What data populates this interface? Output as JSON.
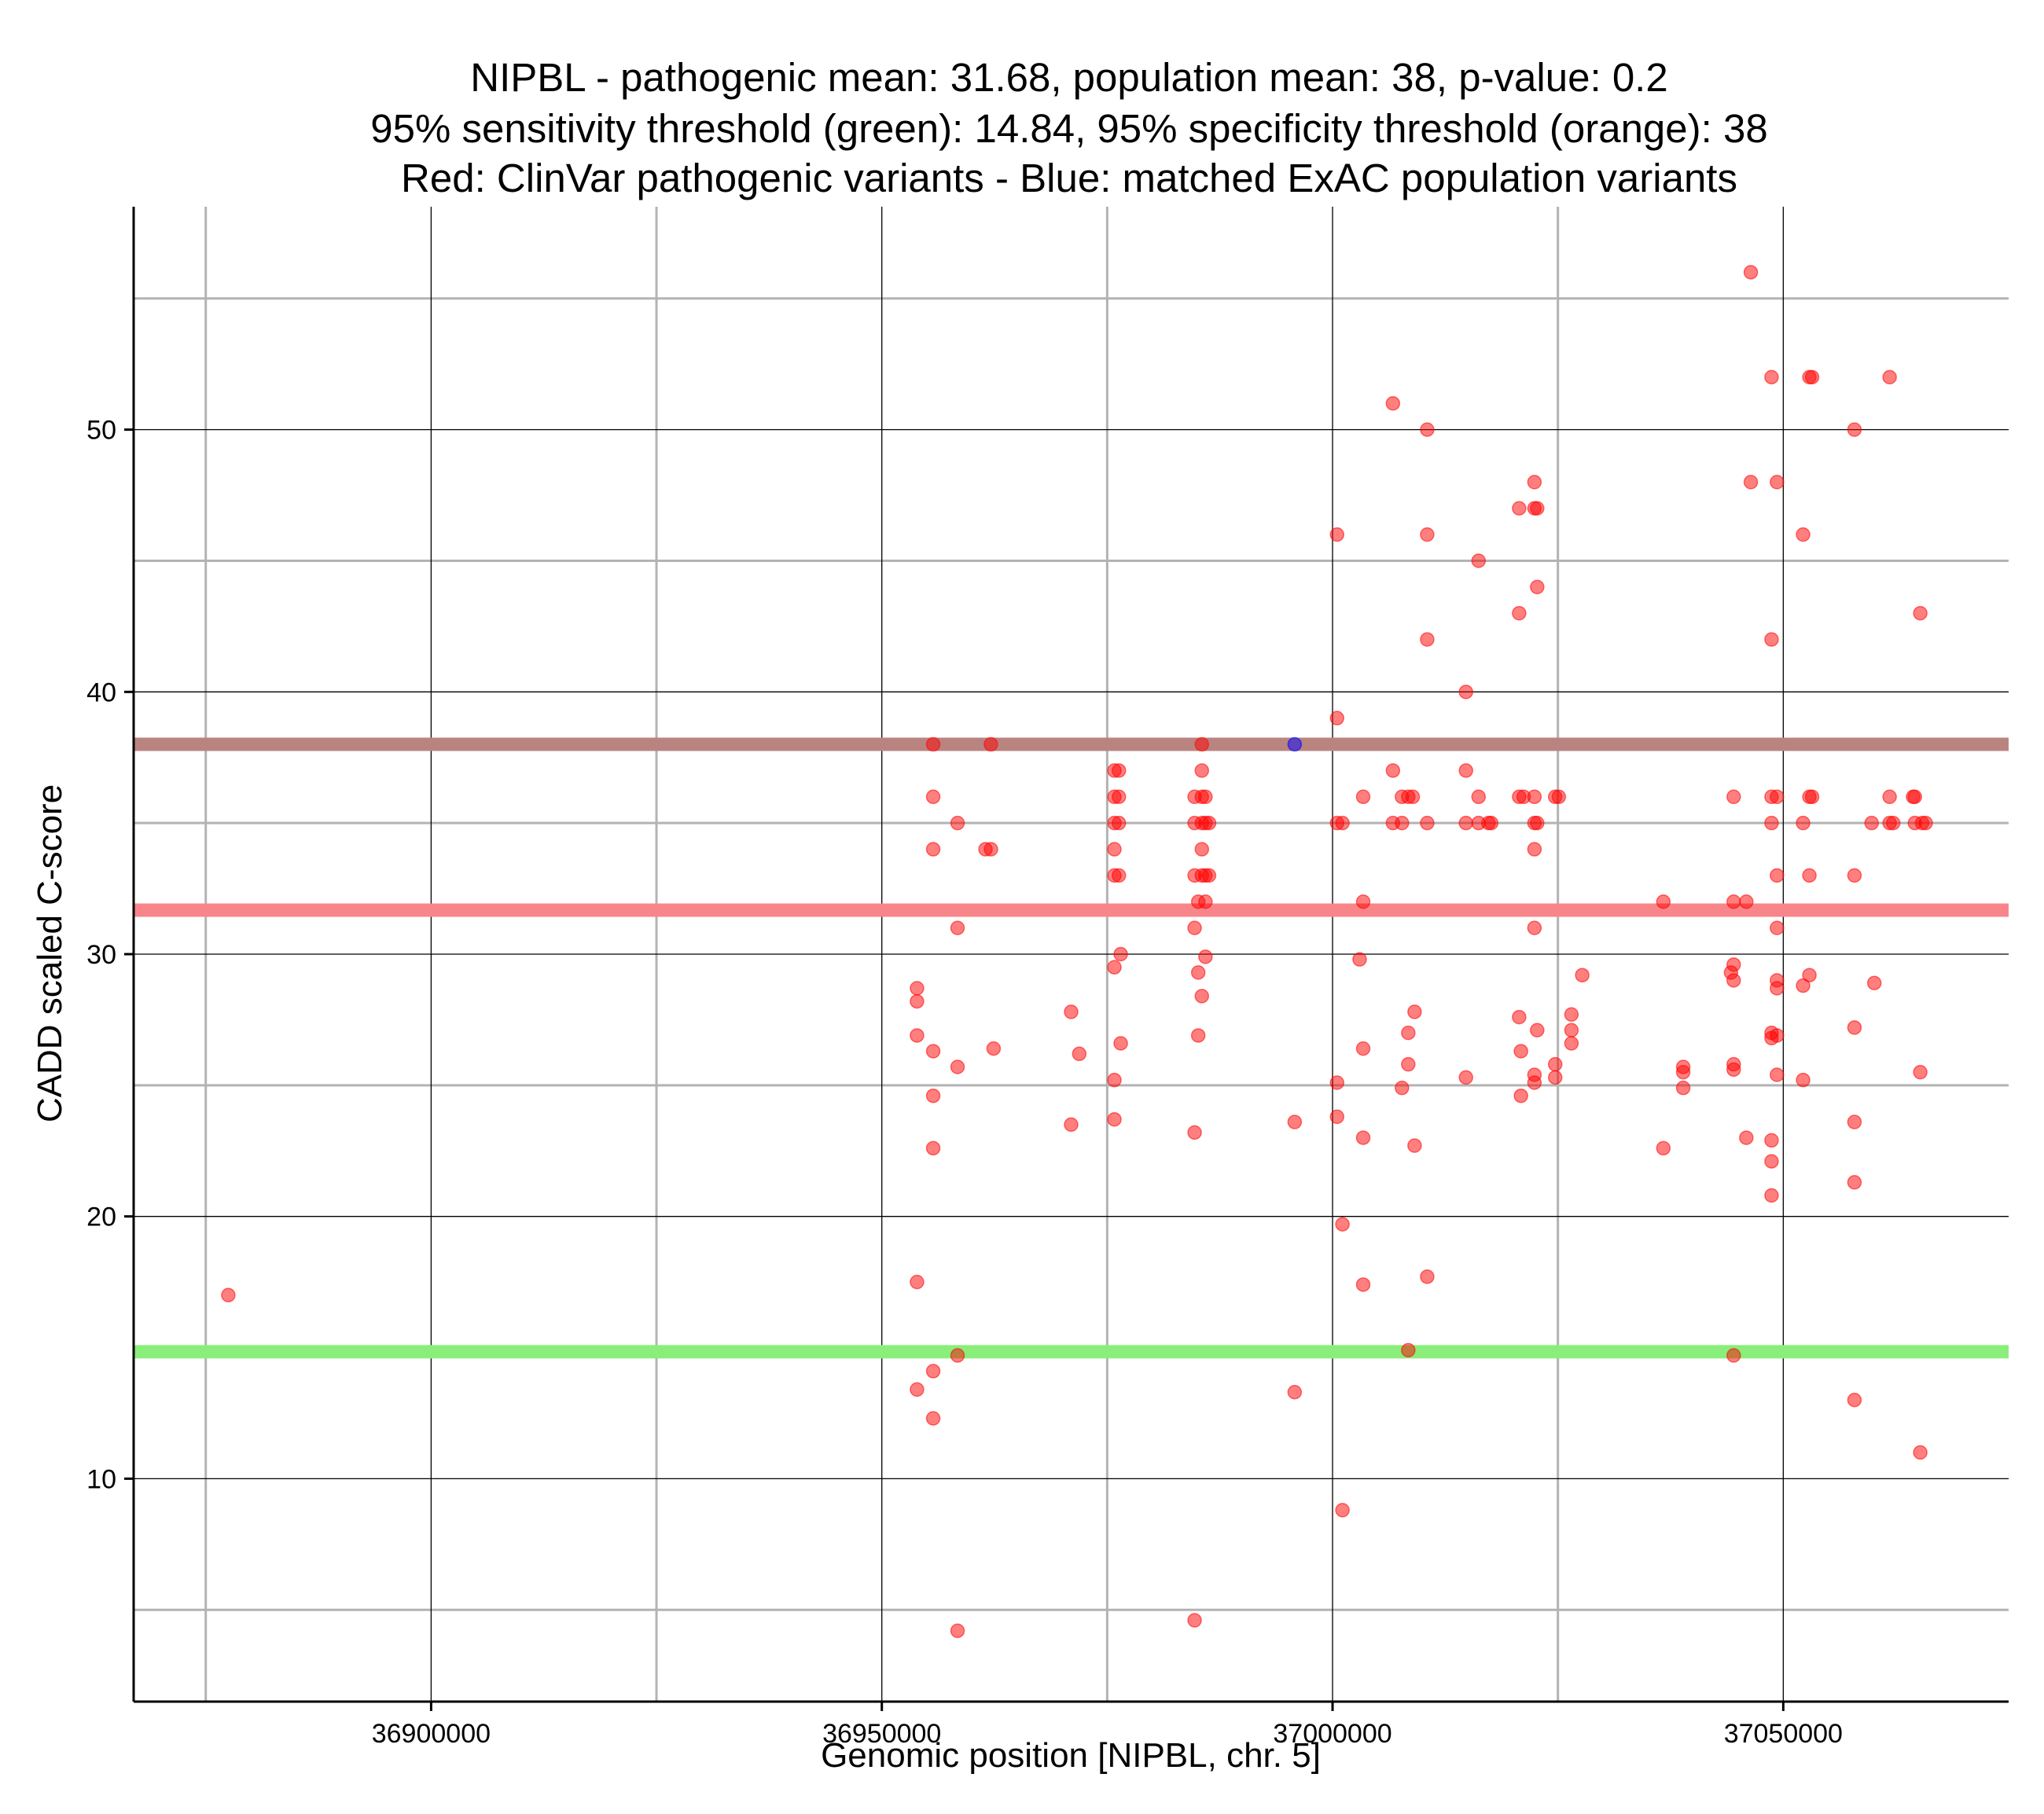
{
  "chart_data": {
    "type": "scatter",
    "title": [
      "NIPBL - pathogenic mean: 31.68, population mean: 38, p-value: 0.2",
      "95% sensitivity threshold (green): 14.84, 95% specificity threshold (orange): 38",
      "Red: ClinVar pathogenic variants - Blue: matched ExAC population variants"
    ],
    "xlabel": "Genomic position [NIPBL, chr. 5]",
    "ylabel": "CADD scaled C-score",
    "xlim": [
      36867000,
      37075000
    ],
    "ylim": [
      1.5,
      58.5
    ],
    "x_ticks": [
      36900000,
      36950000,
      37000000,
      37050000
    ],
    "x_tick_labels": [
      "36900000",
      "36950000",
      "37000000",
      "37050000"
    ],
    "y_ticks": [
      10,
      20,
      30,
      40,
      50
    ],
    "y_tick_labels": [
      "10",
      "20",
      "30",
      "40",
      "50"
    ],
    "x_minor_ticks": [
      36875000,
      36925000,
      36975000,
      37025000
    ],
    "y_minor_ticks": [
      5,
      15,
      25,
      35,
      45,
      55
    ],
    "grid": true,
    "reference_lines": [
      {
        "name": "population mean",
        "value": 38,
        "color": "#b98480"
      },
      {
        "name": "pathogenic mean",
        "value": 31.68,
        "color": "#f8858a"
      },
      {
        "name": "95% sensitivity threshold",
        "value": 14.84,
        "color": "#8aee7a"
      }
    ],
    "series": [
      {
        "name": "ClinVar pathogenic variants",
        "color": "#ff0000",
        "points": [
          [
            36877500,
            17.0
          ],
          [
            36953900,
            28.7
          ],
          [
            36953900,
            28.2
          ],
          [
            36953900,
            26.9
          ],
          [
            36953900,
            17.5
          ],
          [
            36953900,
            13.4
          ],
          [
            36955700,
            38.0
          ],
          [
            36955700,
            36.0
          ],
          [
            36955700,
            34.0
          ],
          [
            36955700,
            26.3
          ],
          [
            36955700,
            24.6
          ],
          [
            36955700,
            22.6
          ],
          [
            36955700,
            14.1
          ],
          [
            36955700,
            12.3
          ],
          [
            36958400,
            35.0
          ],
          [
            36958400,
            31.0
          ],
          [
            36958400,
            25.7
          ],
          [
            36958400,
            14.7
          ],
          [
            36958400,
            4.2
          ],
          [
            36961500,
            34.0
          ],
          [
            36962100,
            38.0
          ],
          [
            36962100,
            34.0
          ],
          [
            36962400,
            26.4
          ],
          [
            36971000,
            27.8
          ],
          [
            36971000,
            23.5
          ],
          [
            36971900,
            26.2
          ],
          [
            36975800,
            37.0
          ],
          [
            36975800,
            36.0
          ],
          [
            36975800,
            35.0
          ],
          [
            36975800,
            34.0
          ],
          [
            36975800,
            33.0
          ],
          [
            36975800,
            29.5
          ],
          [
            36975800,
            25.2
          ],
          [
            36975800,
            23.7
          ],
          [
            36976300,
            37.0
          ],
          [
            36976300,
            36.0
          ],
          [
            36976300,
            35.0
          ],
          [
            36976300,
            33.0
          ],
          [
            36976500,
            30.0
          ],
          [
            36976500,
            26.6
          ],
          [
            36984700,
            36.0
          ],
          [
            36984700,
            35.0
          ],
          [
            36984700,
            33.0
          ],
          [
            36984700,
            31.0
          ],
          [
            36984700,
            23.2
          ],
          [
            36984700,
            4.6
          ],
          [
            36985100,
            32.0
          ],
          [
            36985100,
            29.3
          ],
          [
            36985100,
            26.9
          ],
          [
            36985500,
            38.0
          ],
          [
            36985500,
            37.0
          ],
          [
            36985500,
            36.0
          ],
          [
            36985500,
            35.0
          ],
          [
            36985500,
            34.0
          ],
          [
            36985500,
            33.0
          ],
          [
            36985500,
            28.4
          ],
          [
            36985900,
            36.0
          ],
          [
            36985900,
            35.0
          ],
          [
            36985900,
            33.0
          ],
          [
            36985900,
            32.0
          ],
          [
            36985900,
            29.9
          ],
          [
            36986300,
            35.0
          ],
          [
            36986300,
            33.0
          ],
          [
            36995800,
            23.6
          ],
          [
            36995800,
            13.3
          ],
          [
            37000500,
            46.0
          ],
          [
            37000500,
            39.0
          ],
          [
            37000500,
            35.0
          ],
          [
            37000500,
            25.1
          ],
          [
            37000500,
            23.8
          ],
          [
            37001100,
            35.0
          ],
          [
            37001100,
            19.7
          ],
          [
            37001100,
            8.8
          ],
          [
            37003000,
            29.8
          ],
          [
            37003400,
            36.0
          ],
          [
            37003400,
            32.0
          ],
          [
            37003400,
            26.4
          ],
          [
            37003400,
            23.0
          ],
          [
            37003400,
            17.4
          ],
          [
            37006700,
            51.0
          ],
          [
            37006700,
            37.0
          ],
          [
            37006700,
            35.0
          ],
          [
            37007700,
            36.0
          ],
          [
            37007700,
            35.0
          ],
          [
            37007700,
            24.9
          ],
          [
            37008400,
            36.0
          ],
          [
            37008400,
            27.0
          ],
          [
            37008400,
            25.8
          ],
          [
            37008400,
            14.9
          ],
          [
            37008900,
            36.0
          ],
          [
            37009100,
            27.8
          ],
          [
            37009100,
            22.7
          ],
          [
            37010500,
            50.0
          ],
          [
            37010500,
            46.0
          ],
          [
            37010500,
            42.0
          ],
          [
            37010500,
            35.0
          ],
          [
            37010500,
            17.7
          ],
          [
            37014800,
            40.0
          ],
          [
            37014800,
            37.0
          ],
          [
            37014800,
            35.0
          ],
          [
            37014800,
            25.3
          ],
          [
            37016200,
            45.0
          ],
          [
            37016200,
            36.0
          ],
          [
            37016200,
            35.0
          ],
          [
            37017300,
            35.0
          ],
          [
            37017600,
            35.0
          ],
          [
            37020700,
            47.0
          ],
          [
            37020700,
            43.0
          ],
          [
            37020700,
            36.0
          ],
          [
            37020700,
            27.6
          ],
          [
            37020900,
            26.3
          ],
          [
            37020900,
            24.6
          ],
          [
            37021200,
            36.0
          ],
          [
            37022400,
            48.0
          ],
          [
            37022400,
            47.0
          ],
          [
            37022400,
            36.0
          ],
          [
            37022400,
            35.0
          ],
          [
            37022400,
            34.0
          ],
          [
            37022400,
            31.0
          ],
          [
            37022400,
            25.4
          ],
          [
            37022400,
            25.1
          ],
          [
            37022700,
            47.0
          ],
          [
            37022700,
            44.0
          ],
          [
            37022700,
            35.0
          ],
          [
            37022700,
            27.1
          ],
          [
            37024700,
            36.0
          ],
          [
            37024700,
            25.8
          ],
          [
            37024700,
            25.3
          ],
          [
            37025100,
            36.0
          ],
          [
            37026500,
            27.7
          ],
          [
            37026500,
            27.1
          ],
          [
            37026500,
            26.6
          ],
          [
            37027700,
            29.2
          ],
          [
            37036700,
            32.0
          ],
          [
            37036700,
            22.6
          ],
          [
            37038900,
            25.7
          ],
          [
            37038900,
            25.5
          ],
          [
            37038900,
            24.9
          ],
          [
            37044200,
            29.3
          ],
          [
            37044500,
            36.0
          ],
          [
            37044500,
            32.0
          ],
          [
            37044500,
            29.6
          ],
          [
            37044500,
            29.0
          ],
          [
            37044500,
            25.8
          ],
          [
            37044500,
            25.6
          ],
          [
            37044500,
            14.7
          ],
          [
            37045900,
            32.0
          ],
          [
            37045900,
            23.0
          ],
          [
            37046400,
            56.0
          ],
          [
            37046400,
            48.0
          ],
          [
            37048700,
            52.0
          ],
          [
            37048700,
            42.0
          ],
          [
            37048700,
            36.0
          ],
          [
            37048700,
            35.0
          ],
          [
            37048700,
            27.0
          ],
          [
            37048700,
            26.8
          ],
          [
            37048700,
            22.9
          ],
          [
            37048700,
            22.1
          ],
          [
            37048700,
            20.8
          ],
          [
            37049300,
            48.0
          ],
          [
            37049300,
            36.0
          ],
          [
            37049300,
            33.0
          ],
          [
            37049300,
            31.0
          ],
          [
            37049300,
            29.0
          ],
          [
            37049300,
            28.7
          ],
          [
            37049300,
            26.9
          ],
          [
            37049300,
            25.4
          ],
          [
            37052200,
            46.0
          ],
          [
            37052200,
            35.0
          ],
          [
            37052200,
            28.8
          ],
          [
            37052200,
            25.2
          ],
          [
            37052900,
            52.0
          ],
          [
            37052900,
            36.0
          ],
          [
            37052900,
            33.0
          ],
          [
            37052900,
            29.2
          ],
          [
            37053200,
            52.0
          ],
          [
            37053200,
            36.0
          ],
          [
            37057900,
            50.0
          ],
          [
            37057900,
            33.0
          ],
          [
            37057900,
            27.2
          ],
          [
            37057900,
            23.6
          ],
          [
            37057900,
            21.3
          ],
          [
            37057900,
            13.0
          ],
          [
            37059800,
            35.0
          ],
          [
            37060100,
            28.9
          ],
          [
            37061800,
            52.0
          ],
          [
            37061800,
            36.0
          ],
          [
            37061800,
            35.0
          ],
          [
            37062200,
            35.0
          ],
          [
            37064400,
            36.0
          ],
          [
            37064600,
            36.0
          ],
          [
            37064600,
            35.0
          ],
          [
            37065200,
            43.0
          ],
          [
            37065200,
            25.5
          ],
          [
            37065200,
            11.0
          ],
          [
            37065400,
            35.0
          ],
          [
            37065800,
            35.0
          ]
        ]
      },
      {
        "name": "matched ExAC population variants",
        "color": "#0000ff",
        "points": [
          [
            36995800,
            38.0
          ]
        ]
      }
    ]
  }
}
